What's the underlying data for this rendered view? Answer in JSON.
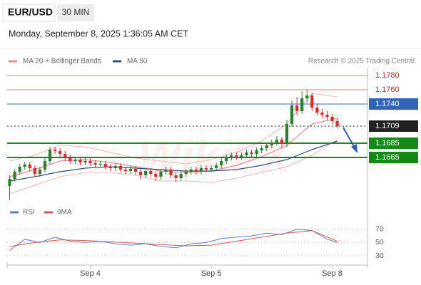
{
  "header": {
    "symbol": "EUR/USD",
    "timeframe": "30 MIN",
    "datetime": "Monday, September 8, 2025 1:36:05 AM CET"
  },
  "watermark": "WikiFX",
  "chart_data": [
    {
      "type": "candlestick",
      "source": "Research © 2025 Trading Central",
      "xlim": [
        -0.5,
        71
      ],
      "ylim": [
        1.1601,
        1.1791
      ],
      "up_color": "#2e7d32",
      "down_color": "#d32f2f",
      "open": [
        1.1625,
        1.1635,
        1.1645,
        1.1652,
        1.1655,
        1.165,
        1.1642,
        1.1648,
        1.166,
        1.1676,
        1.1674,
        1.167,
        1.1665,
        1.166,
        1.1662,
        1.1658,
        1.166,
        1.1657,
        1.1655,
        1.1656,
        1.1652,
        1.165,
        1.1653,
        1.1648,
        1.1646,
        1.1649,
        1.1645,
        1.164,
        1.1646,
        1.1642,
        1.1638,
        1.1645,
        1.1648,
        1.164,
        1.1636,
        1.1642,
        1.1645,
        1.1648,
        1.1645,
        1.165,
        1.1648,
        1.165,
        1.1654,
        1.166,
        1.1665,
        1.1668,
        1.1666,
        1.1668,
        1.1672,
        1.167,
        1.1675,
        1.1678,
        1.1682,
        1.1686,
        1.169,
        1.1684,
        1.1712,
        1.1738,
        1.173,
        1.1748,
        1.1752,
        1.1735,
        1.1728,
        1.1725,
        1.1722,
        1.1716
      ],
      "high": [
        1.164,
        1.1649,
        1.1656,
        1.1659,
        1.1659,
        1.1654,
        1.1652,
        1.1664,
        1.168,
        1.168,
        1.1678,
        1.1674,
        1.1669,
        1.1666,
        1.1666,
        1.1664,
        1.1664,
        1.1661,
        1.166,
        1.166,
        1.1656,
        1.1657,
        1.1657,
        1.1652,
        1.1653,
        1.1653,
        1.1649,
        1.165,
        1.165,
        1.1646,
        1.1649,
        1.1652,
        1.1652,
        1.1644,
        1.1646,
        1.1649,
        1.1652,
        1.1652,
        1.1654,
        1.1654,
        1.1654,
        1.1658,
        1.1664,
        1.1669,
        1.1672,
        1.1672,
        1.1672,
        1.1676,
        1.1676,
        1.1679,
        1.1682,
        1.1686,
        1.169,
        1.1695,
        1.1694,
        1.1718,
        1.1745,
        1.175,
        1.1758,
        1.176,
        1.1756,
        1.174,
        1.1733,
        1.173,
        1.1726,
        1.172
      ],
      "low": [
        1.1605,
        1.1631,
        1.1641,
        1.1648,
        1.1646,
        1.1638,
        1.1638,
        1.1644,
        1.1656,
        1.167,
        1.1666,
        1.1661,
        1.1656,
        1.1656,
        1.1654,
        1.1654,
        1.1653,
        1.1651,
        1.1651,
        1.1648,
        1.1646,
        1.1646,
        1.1644,
        1.1642,
        1.1642,
        1.1641,
        1.1634,
        1.1636,
        1.1638,
        1.1632,
        1.1634,
        1.1641,
        1.1636,
        1.163,
        1.1632,
        1.1638,
        1.1641,
        1.1641,
        1.1641,
        1.1644,
        1.1644,
        1.1646,
        1.165,
        1.1656,
        1.1661,
        1.1662,
        1.1662,
        1.1664,
        1.1666,
        1.1666,
        1.1671,
        1.1674,
        1.1678,
        1.1682,
        1.1678,
        1.168,
        1.1708,
        1.1724,
        1.1726,
        1.1742,
        1.173,
        1.1724,
        1.172,
        1.1717,
        1.1712,
        1.1706
      ],
      "close": [
        1.1635,
        1.1645,
        1.1652,
        1.1655,
        1.165,
        1.1642,
        1.1648,
        1.166,
        1.1676,
        1.1674,
        1.167,
        1.1665,
        1.166,
        1.1662,
        1.1658,
        1.166,
        1.1657,
        1.1655,
        1.1656,
        1.1652,
        1.165,
        1.1653,
        1.1648,
        1.1646,
        1.1649,
        1.1645,
        1.164,
        1.1646,
        1.1642,
        1.1638,
        1.1645,
        1.1648,
        1.164,
        1.1636,
        1.1642,
        1.1645,
        1.1648,
        1.1645,
        1.165,
        1.1648,
        1.165,
        1.1654,
        1.166,
        1.1665,
        1.1668,
        1.1666,
        1.1668,
        1.1672,
        1.167,
        1.1675,
        1.1678,
        1.1682,
        1.1686,
        1.169,
        1.1684,
        1.1712,
        1.1738,
        1.173,
        1.1748,
        1.1752,
        1.1735,
        1.1728,
        1.1725,
        1.1722,
        1.1716,
        1.1709
      ],
      "overlays": [
        {
          "name": "MA 20 + Bollinger Bands",
          "color": "#e88a8a",
          "band_color": "#f4b6b6",
          "x": [
            0,
            5,
            10,
            15,
            20,
            25,
            30,
            35,
            40,
            45,
            50,
            55,
            60,
            65
          ],
          "values": [
            1.1638,
            1.1648,
            1.166,
            1.1662,
            1.1658,
            1.1652,
            1.1646,
            1.1644,
            1.1646,
            1.1654,
            1.1666,
            1.1682,
            1.1712,
            1.172
          ],
          "upper": [
            1.166,
            1.1668,
            1.1682,
            1.168,
            1.1672,
            1.1664,
            1.166,
            1.1656,
            1.1662,
            1.1672,
            1.1688,
            1.1712,
            1.1755,
            1.175
          ],
          "lower": [
            1.1614,
            1.1626,
            1.1638,
            1.1644,
            1.1644,
            1.164,
            1.1632,
            1.1632,
            1.163,
            1.1636,
            1.1644,
            1.1652,
            1.1668,
            1.169
          ]
        },
        {
          "name": "MA 50",
          "color": "#34507a",
          "x": [
            0,
            5,
            10,
            15,
            20,
            25,
            30,
            35,
            40,
            45,
            50,
            55,
            60,
            65
          ],
          "values": [
            1.1632,
            1.1638,
            1.1645,
            1.165,
            1.1652,
            1.165,
            1.1648,
            1.1646,
            1.1646,
            1.1648,
            1.1654,
            1.1662,
            1.1676,
            1.1688
          ]
        }
      ],
      "levels": [
        {
          "value": 1.178,
          "label": "1.1780",
          "color": "#e08080",
          "style": "line"
        },
        {
          "value": 1.176,
          "label": "1.1760",
          "color": "#e08080",
          "style": "line"
        },
        {
          "value": 1.174,
          "label": "1.1740",
          "color": "#2f64b9",
          "style": "box"
        },
        {
          "value": 1.1709,
          "color": "#222222",
          "style": "current"
        },
        {
          "value": 1.1685,
          "color": "#138a13",
          "style": "box"
        },
        {
          "value": 1.1665,
          "color": "#138a13",
          "style": "box"
        }
      ]
    },
    {
      "type": "line",
      "xlim": [
        -0.5,
        71
      ],
      "ylim": [
        16,
        88
      ],
      "yticks": [
        30,
        50,
        70
      ],
      "xticks": [
        {
          "value": 16,
          "label": "Sep 4"
        },
        {
          "value": 40,
          "label": "Sep 5"
        },
        {
          "value": 64,
          "label": "Sep 8"
        }
      ],
      "series": [
        {
          "name": "RSI",
          "color": "#5b7fc7",
          "x": [
            0,
            3,
            6,
            9,
            12,
            15,
            18,
            21,
            24,
            27,
            30,
            33,
            36,
            39,
            42,
            45,
            48,
            51,
            54,
            57,
            60,
            63,
            65
          ],
          "values": [
            38,
            55,
            50,
            58,
            52,
            50,
            52,
            48,
            46,
            48,
            44,
            42,
            48,
            50,
            56,
            58,
            60,
            64,
            62,
            70,
            68,
            55,
            50
          ]
        },
        {
          "name": "9MA",
          "color": "#d9534f",
          "x": [
            0,
            5,
            10,
            15,
            20,
            25,
            30,
            35,
            40,
            45,
            50,
            55,
            60,
            65
          ],
          "values": [
            44,
            50,
            54,
            53,
            51,
            49,
            47,
            45,
            46,
            52,
            58,
            64,
            68,
            52
          ]
        }
      ]
    }
  ]
}
